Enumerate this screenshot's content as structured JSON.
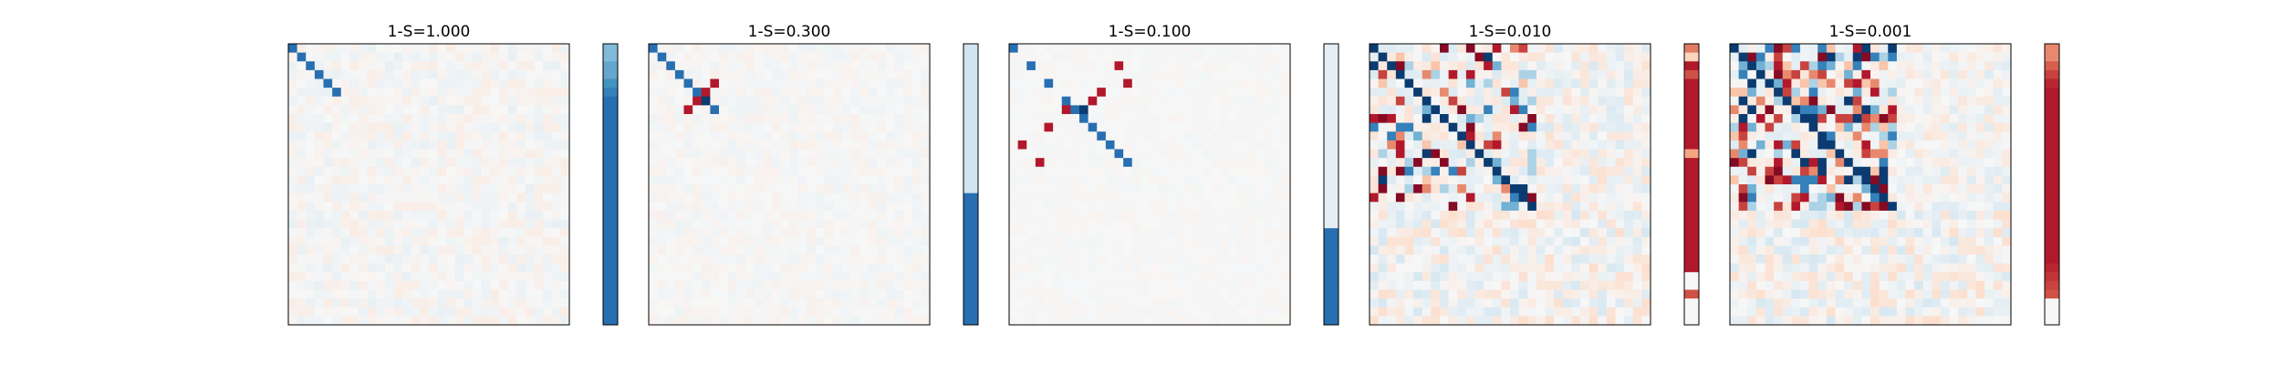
{
  "figure": {
    "background": "#ffffff",
    "colormap": "RdBu_r",
    "panel_titles": [
      "1-S=1.000",
      "1-S=0.300",
      "1-S=0.100",
      "1-S=0.010",
      "1-S=0.001"
    ]
  },
  "chart_data": [
    {
      "type": "heatmap",
      "title": "1-S=1.000",
      "colormap": "RdBu_r",
      "vlim": [
        -1,
        1
      ],
      "grid": false,
      "size": [
        32,
        32
      ],
      "strong_cells": [
        {
          "row": 0,
          "col": 0,
          "value": -0.7
        },
        {
          "row": 1,
          "col": 1,
          "value": -0.7
        },
        {
          "row": 2,
          "col": 2,
          "value": -0.7
        },
        {
          "row": 3,
          "col": 3,
          "value": -0.7
        },
        {
          "row": 4,
          "col": 4,
          "value": -0.7
        },
        {
          "row": 5,
          "col": 5,
          "value": -0.7
        }
      ],
      "background_noise": 0.03,
      "side_bar": {
        "values": [
          -0.3,
          -0.3,
          -0.4,
          -0.4,
          -0.5,
          -0.6,
          -0.7,
          -0.7,
          -0.7,
          -0.7,
          -0.7,
          -0.7,
          -0.7,
          -0.7,
          -0.7,
          -0.7,
          -0.7,
          -0.7,
          -0.7,
          -0.7,
          -0.7,
          -0.7,
          -0.7,
          -0.7,
          -0.7,
          -0.7,
          -0.7,
          -0.7,
          -0.7,
          -0.7,
          -0.7,
          -0.7
        ]
      }
    },
    {
      "type": "heatmap",
      "title": "1-S=0.300",
      "colormap": "RdBu_r",
      "vlim": [
        -1,
        1
      ],
      "grid": false,
      "size": [
        32,
        32
      ],
      "strong_cells": [
        {
          "row": 0,
          "col": 0,
          "value": -0.7
        },
        {
          "row": 1,
          "col": 1,
          "value": -0.7
        },
        {
          "row": 2,
          "col": 2,
          "value": -0.7
        },
        {
          "row": 3,
          "col": 3,
          "value": -0.7
        },
        {
          "row": 4,
          "col": 4,
          "value": -0.7
        },
        {
          "row": 5,
          "col": 5,
          "value": -0.7
        },
        {
          "row": 6,
          "col": 6,
          "value": -0.7
        },
        {
          "row": 7,
          "col": 7,
          "value": -0.7
        },
        {
          "row": 5,
          "col": 6,
          "value": 0.75
        },
        {
          "row": 6,
          "col": 5,
          "value": 0.75
        },
        {
          "row": 4,
          "col": 7,
          "value": 0.75
        },
        {
          "row": 7,
          "col": 4,
          "value": 0.75
        },
        {
          "row": 6,
          "col": 6,
          "value": -0.95
        }
      ],
      "background_noise": 0.02,
      "side_bar": {
        "values": [
          -0.08,
          -0.08,
          -0.08,
          -0.08,
          -0.08,
          -0.08,
          -0.08,
          -0.08,
          -0.08,
          -0.08,
          -0.08,
          -0.08,
          -0.08,
          -0.08,
          -0.08,
          -0.08,
          -0.08,
          -0.7,
          -0.7,
          -0.7,
          -0.7,
          -0.7,
          -0.7,
          -0.7,
          -0.7,
          -0.7,
          -0.7,
          -0.7,
          -0.7,
          -0.7,
          -0.7,
          -0.7
        ]
      }
    },
    {
      "type": "heatmap",
      "title": "1-S=0.100",
      "colormap": "RdBu_r",
      "vlim": [
        -1,
        1
      ],
      "grid": false,
      "size": [
        32,
        32
      ],
      "strong_cells": [
        {
          "row": 0,
          "col": 0,
          "value": -0.7
        },
        {
          "row": 2,
          "col": 2,
          "value": -0.7
        },
        {
          "row": 4,
          "col": 4,
          "value": -0.7
        },
        {
          "row": 6,
          "col": 6,
          "value": -0.7
        },
        {
          "row": 7,
          "col": 7,
          "value": -0.7
        },
        {
          "row": 8,
          "col": 8,
          "value": -0.7
        },
        {
          "row": 9,
          "col": 9,
          "value": -0.7
        },
        {
          "row": 10,
          "col": 10,
          "value": -0.7
        },
        {
          "row": 11,
          "col": 11,
          "value": -0.7
        },
        {
          "row": 12,
          "col": 12,
          "value": -0.7
        },
        {
          "row": 13,
          "col": 13,
          "value": -0.7
        },
        {
          "row": 7,
          "col": 8,
          "value": -0.95
        },
        {
          "row": 2,
          "col": 12,
          "value": 0.75
        },
        {
          "row": 4,
          "col": 13,
          "value": 0.75
        },
        {
          "row": 5,
          "col": 10,
          "value": 0.75
        },
        {
          "row": 6,
          "col": 9,
          "value": 0.75
        },
        {
          "row": 7,
          "col": 6,
          "value": 0.75
        },
        {
          "row": 9,
          "col": 4,
          "value": 0.75
        },
        {
          "row": 11,
          "col": 1,
          "value": 0.75
        },
        {
          "row": 13,
          "col": 3,
          "value": 0.75
        }
      ],
      "background_noise": 0.01,
      "side_bar": {
        "values": [
          -0.04,
          -0.04,
          -0.04,
          -0.04,
          -0.04,
          -0.04,
          -0.04,
          -0.04,
          -0.04,
          -0.04,
          -0.04,
          -0.04,
          -0.04,
          -0.04,
          -0.04,
          -0.04,
          -0.04,
          -0.04,
          -0.04,
          -0.04,
          -0.04,
          -0.7,
          -0.7,
          -0.7,
          -0.7,
          -0.7,
          -0.7,
          -0.7,
          -0.7,
          -0.7,
          -0.7,
          -0.7
        ]
      }
    },
    {
      "type": "heatmap",
      "title": "1-S=0.010",
      "colormap": "RdBu_r",
      "vlim": [
        -1,
        1
      ],
      "grid": false,
      "size": [
        32,
        32
      ],
      "diagonal_value": -0.95,
      "random_seed": 11,
      "density": 0.32,
      "background_noise": 0.06,
      "side_bar": {
        "values": [
          0.4,
          0.1,
          0.75,
          0.55,
          0.75,
          0.75,
          0.75,
          0.75,
          0.75,
          0.75,
          0.75,
          0.75,
          0.25,
          0.75,
          0.75,
          0.75,
          0.75,
          0.75,
          0.75,
          0.75,
          0.75,
          0.75,
          0.75,
          0.75,
          0.75,
          0.75,
          0.0,
          0.0,
          0.55,
          0.0,
          0.0,
          0.0
        ]
      }
    },
    {
      "type": "heatmap",
      "title": "1-S=0.001",
      "colormap": "RdBu_r",
      "vlim": [
        -1,
        1
      ],
      "grid": false,
      "size": [
        32,
        32
      ],
      "diagonal_value": -0.95,
      "random_seed": 29,
      "density": 0.55,
      "background_noise": 0.05,
      "side_bar": {
        "values": [
          0.35,
          0.35,
          0.5,
          0.6,
          0.7,
          0.75,
          0.75,
          0.75,
          0.75,
          0.75,
          0.75,
          0.75,
          0.75,
          0.75,
          0.75,
          0.75,
          0.75,
          0.75,
          0.75,
          0.75,
          0.75,
          0.75,
          0.75,
          0.75,
          0.75,
          0.7,
          0.65,
          0.6,
          0.55,
          0.0,
          0.0,
          0.0
        ]
      }
    }
  ]
}
